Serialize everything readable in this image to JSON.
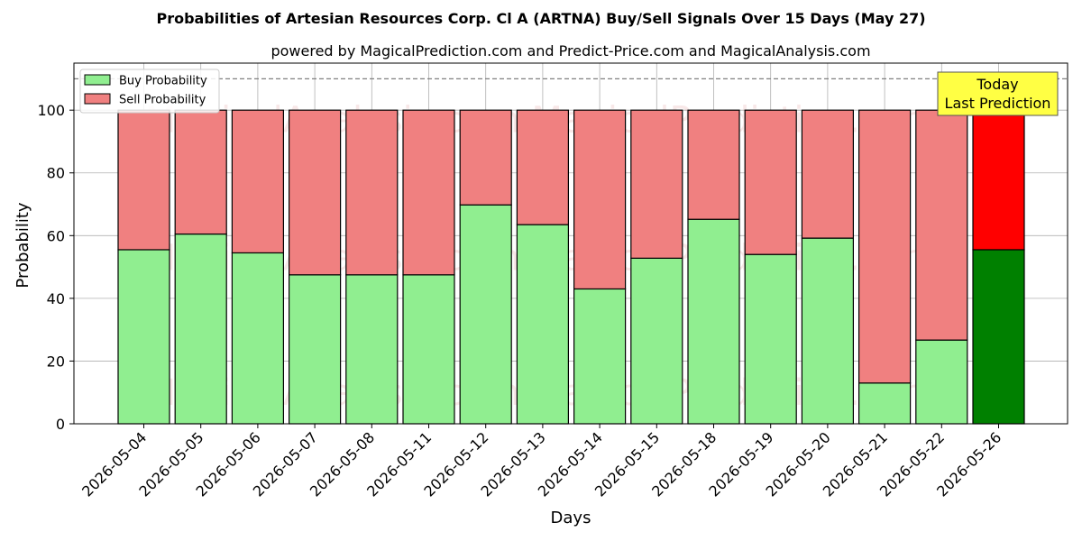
{
  "chart_data": {
    "type": "bar",
    "stacked": true,
    "title": "Probabilities of Artesian Resources Corp. Cl A (ARTNA) Buy/Sell Signals Over 15 Days (May 27)",
    "subtitle": "powered by MagicalPrediction.com and Predict-Price.com and MagicalAnalysis.com",
    "xlabel": "Days",
    "ylabel": "Probability",
    "ylim": [
      0,
      115
    ],
    "yticks": [
      0,
      20,
      40,
      60,
      80,
      100
    ],
    "grid": true,
    "reference_line": 110,
    "legend_placement": "top-left",
    "categories": [
      "2026-05-04",
      "2026-05-05",
      "2026-05-06",
      "2026-05-07",
      "2026-05-08",
      "2026-05-11",
      "2026-05-12",
      "2026-05-13",
      "2026-05-14",
      "2026-05-15",
      "2026-05-18",
      "2026-05-19",
      "2026-05-20",
      "2026-05-21",
      "2026-05-22",
      "2026-05-26"
    ],
    "series": [
      {
        "name": "Buy Probability",
        "color": "#90ee90",
        "highlight_color": "#008000",
        "values": [
          55.5,
          60.5,
          54.5,
          47.5,
          47.5,
          47.5,
          69.8,
          63.5,
          43.0,
          52.8,
          65.2,
          54.0,
          59.2,
          13.0,
          26.7,
          55.5
        ]
      },
      {
        "name": "Sell Probability",
        "color": "#f08080",
        "highlight_color": "#ff0000",
        "values": [
          44.5,
          39.5,
          45.5,
          52.5,
          52.5,
          52.5,
          30.2,
          36.5,
          57.0,
          47.2,
          34.8,
          46.0,
          40.8,
          87.0,
          73.3,
          44.5
        ]
      }
    ],
    "highlight_index": 15,
    "annotation": {
      "lines": [
        "Today",
        "Last Prediction"
      ],
      "background": "#ffff44"
    },
    "watermark_text": "MagicalAnalysis.com    MagicalPrediction.com"
  }
}
